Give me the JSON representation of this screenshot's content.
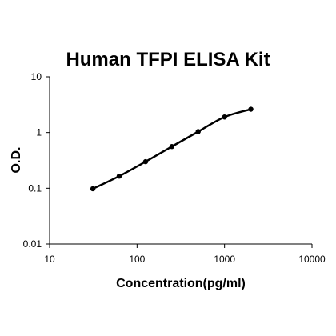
{
  "chart_data": {
    "type": "scatter",
    "title": "Human TFPI ELISA Kit",
    "xlabel": "Concentration(pg/ml)",
    "ylabel": "O.D.",
    "x_scale": "log",
    "y_scale": "log",
    "xlim": [
      10,
      10000
    ],
    "ylim": [
      0.01,
      10
    ],
    "x_ticks": [
      10,
      100,
      1000,
      10000
    ],
    "x_tick_labels": [
      "10",
      "100",
      "1000",
      "10000"
    ],
    "y_ticks": [
      0.01,
      0.1,
      1,
      10
    ],
    "y_tick_labels": [
      "0.01",
      "0.1",
      "1",
      "10"
    ],
    "grid": false,
    "legend": "none",
    "series": [
      {
        "x": [
          31.25,
          62.5,
          125,
          250,
          500,
          1000,
          2000
        ],
        "y": [
          0.098,
          0.165,
          0.3,
          0.56,
          1.04,
          1.9,
          2.62
        ],
        "color": "#000000",
        "fit_curve": true
      }
    ]
  }
}
